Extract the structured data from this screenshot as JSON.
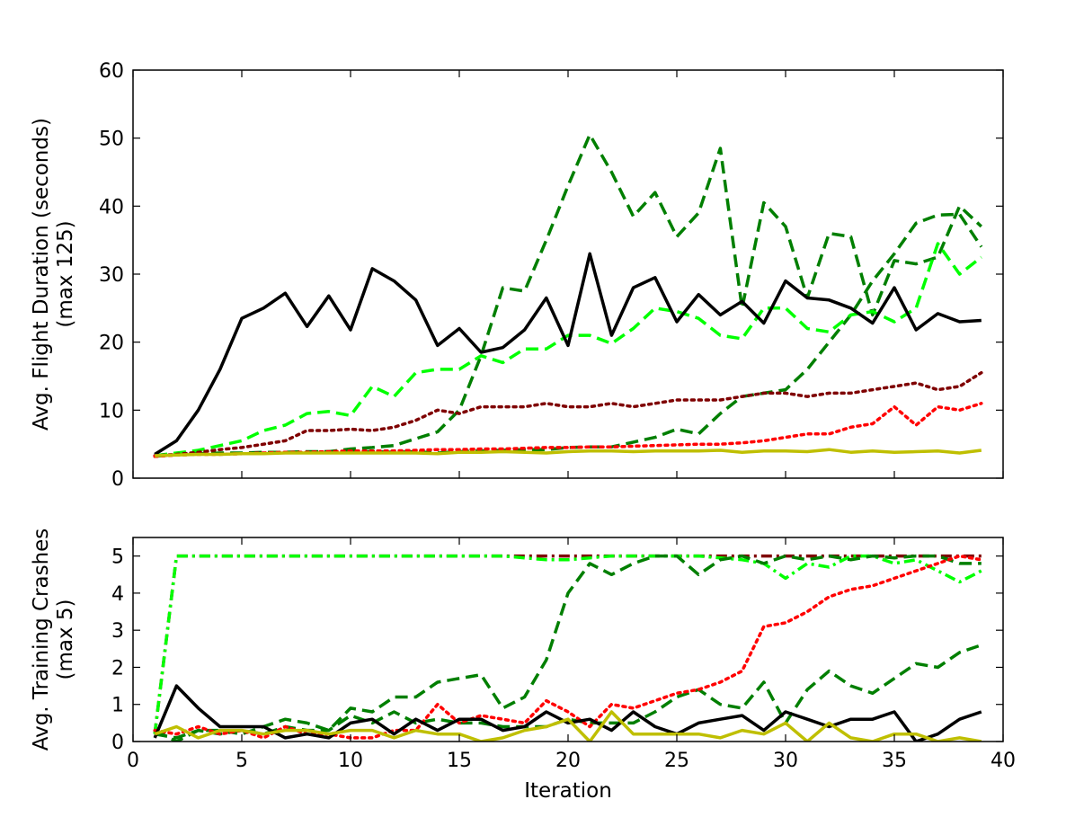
{
  "chart_data": [
    {
      "type": "line",
      "ylabel": "Avg. Flight Duration (seconds)",
      "ylabel_line2": "(max 125)",
      "xlim": [
        0,
        40
      ],
      "ylim": [
        0,
        60
      ],
      "x_ticks": [
        0,
        5,
        10,
        15,
        20,
        25,
        30,
        35,
        40
      ],
      "y_ticks": [
        0,
        10,
        20,
        30,
        40,
        50,
        60
      ],
      "x_tick_labels_shown": false,
      "grid": false,
      "series": [
        {
          "color": "#007f00",
          "style": "dashed",
          "values": [
            3.2,
            3.5,
            3.6,
            3.6,
            3.6,
            3.7,
            3.8,
            3.8,
            3.9,
            3.9,
            3.9,
            3.8,
            3.9,
            3.7,
            3.9,
            4.0,
            4.1,
            4.2,
            4.2,
            4.5,
            4.6,
            4.6,
            5.3,
            6.0,
            7.2,
            6.5,
            9.5,
            12.0,
            12.5,
            13.0,
            16.0,
            20.0,
            24.0,
            29.0,
            33.0,
            37.5,
            38.7,
            38.8,
            34.0
          ]
        },
        {
          "color": "#007f00",
          "style": "dashed",
          "values": [
            3.3,
            3.5,
            3.6,
            3.7,
            3.7,
            3.8,
            3.8,
            3.9,
            3.9,
            4.3,
            4.5,
            4.8,
            5.8,
            6.8,
            10.0,
            18.0,
            28.0,
            27.5,
            35.0,
            43.0,
            50.5,
            45.0,
            38.5,
            42.0,
            35.5,
            39.0,
            48.5,
            25.0,
            40.5,
            37.0,
            26.5,
            36.0,
            35.5,
            24.0,
            32.0,
            31.5,
            32.5,
            40.0,
            37.0
          ]
        },
        {
          "color": "#00ff00",
          "style": "dashed",
          "values": [
            3.3,
            3.7,
            4.1,
            4.8,
            5.5,
            7.0,
            7.8,
            9.5,
            9.8,
            9.2,
            13.5,
            12.0,
            15.5,
            16.0,
            16.0,
            18.0,
            17.0,
            19.0,
            19.0,
            21.0,
            21.0,
            19.8,
            22.0,
            25.0,
            24.5,
            23.5,
            21.0,
            20.5,
            25.0,
            25.0,
            22.0,
            21.5,
            24.0,
            24.5,
            23.0,
            25.0,
            34.5,
            30.0,
            32.5
          ]
        },
        {
          "color": "#000000",
          "style": "solid",
          "values": [
            3.5,
            5.5,
            10.0,
            16.0,
            23.5,
            25.0,
            27.2,
            22.3,
            26.8,
            21.8,
            30.8,
            29.0,
            26.2,
            19.5,
            22.0,
            18.5,
            19.2,
            21.8,
            26.5,
            19.5,
            33.0,
            21.0,
            28.0,
            29.5,
            23.0,
            27.0,
            24.0,
            26.0,
            22.8,
            29.0,
            26.5,
            26.2,
            25.0,
            22.8,
            28.0,
            21.8,
            24.2,
            23.0,
            23.2
          ]
        },
        {
          "color": "#7f0000",
          "style": "dotted",
          "values": [
            3.3,
            3.5,
            3.8,
            4.2,
            4.5,
            5.0,
            5.5,
            7.0,
            7.0,
            7.2,
            7.0,
            7.5,
            8.5,
            10.0,
            9.5,
            10.5,
            10.5,
            10.5,
            11.0,
            10.5,
            10.5,
            11.0,
            10.5,
            11.0,
            11.5,
            11.5,
            11.5,
            12.0,
            12.5,
            12.5,
            12.0,
            12.5,
            12.5,
            13.0,
            13.5,
            14.0,
            13.0,
            13.5,
            15.5
          ]
        },
        {
          "color": "#ff0000",
          "style": "dotted",
          "values": [
            3.2,
            3.4,
            3.5,
            3.5,
            3.6,
            3.7,
            3.8,
            3.8,
            3.9,
            4.0,
            4.0,
            4.0,
            4.1,
            4.2,
            4.2,
            4.3,
            4.3,
            4.4,
            4.5,
            4.5,
            4.6,
            4.6,
            4.7,
            4.8,
            4.9,
            5.0,
            5.0,
            5.2,
            5.5,
            6.0,
            6.5,
            6.5,
            7.5,
            8.0,
            10.5,
            7.8,
            10.5,
            10.0,
            11.0
          ]
        },
        {
          "color": "#bfbf00",
          "style": "solid",
          "values": [
            3.3,
            3.4,
            3.5,
            3.5,
            3.6,
            3.6,
            3.7,
            3.7,
            3.7,
            3.7,
            3.7,
            3.7,
            3.7,
            3.6,
            3.8,
            3.8,
            3.9,
            3.8,
            3.7,
            3.9,
            4.0,
            4.0,
            3.9,
            4.0,
            4.0,
            4.0,
            4.1,
            3.8,
            4.0,
            4.0,
            3.9,
            4.2,
            3.8,
            4.0,
            3.8,
            3.9,
            4.0,
            3.7,
            4.1
          ]
        }
      ]
    },
    {
      "type": "line",
      "xlabel": "Iteration",
      "ylabel": "Avg. Training Crashes",
      "ylabel_line2": "(max 5)",
      "xlim": [
        0,
        40
      ],
      "ylim": [
        0,
        5.5
      ],
      "x_ticks": [
        0,
        5,
        10,
        15,
        20,
        25,
        30,
        35,
        40
      ],
      "y_ticks": [
        0,
        1,
        2,
        3,
        4,
        5
      ],
      "grid": false,
      "series": [
        {
          "color": "#7f0000",
          "style": "dash-dot",
          "values": [
            0.2,
            5.0,
            5.0,
            5.0,
            5.0,
            5.0,
            5.0,
            5.0,
            5.0,
            5.0,
            5.0,
            5.0,
            5.0,
            5.0,
            5.0,
            5.0,
            5.0,
            5.0,
            5.0,
            5.0,
            5.0,
            5.0,
            5.0,
            5.0,
            5.0,
            5.0,
            5.0,
            5.0,
            5.0,
            5.0,
            5.0,
            5.0,
            5.0,
            5.0,
            5.0,
            5.0,
            5.0,
            5.0,
            5.0
          ]
        },
        {
          "color": "#00ff00",
          "style": "dash-dot",
          "values": [
            0.2,
            5.0,
            5.0,
            5.0,
            5.0,
            5.0,
            5.0,
            5.0,
            5.0,
            5.0,
            5.0,
            5.0,
            5.0,
            5.0,
            5.0,
            5.0,
            5.0,
            4.95,
            4.9,
            4.9,
            4.95,
            5.0,
            5.0,
            5.0,
            5.0,
            5.0,
            4.95,
            4.9,
            4.8,
            4.4,
            4.8,
            4.7,
            5.0,
            5.0,
            4.8,
            4.9,
            4.6,
            4.3,
            4.6
          ]
        },
        {
          "color": "#007f00",
          "style": "dashed",
          "values": [
            0.3,
            0.0,
            0.3,
            0.3,
            0.2,
            0.4,
            0.6,
            0.5,
            0.3,
            0.9,
            0.8,
            1.2,
            1.2,
            1.6,
            1.7,
            1.8,
            0.9,
            1.2,
            2.2,
            4.0,
            4.8,
            4.5,
            4.8,
            5.0,
            5.0,
            4.5,
            4.9,
            5.0,
            4.8,
            5.0,
            4.9,
            5.0,
            4.9,
            5.0,
            4.95,
            5.0,
            5.0,
            4.8,
            4.8
          ]
        },
        {
          "color": "#007f00",
          "style": "dashed",
          "values": [
            0.2,
            0.1,
            0.3,
            0.2,
            0.3,
            0.2,
            0.4,
            0.3,
            0.3,
            0.7,
            0.5,
            0.8,
            0.5,
            0.6,
            0.5,
            0.5,
            0.4,
            0.4,
            0.4,
            0.6,
            0.5,
            0.5,
            0.5,
            0.8,
            1.2,
            1.4,
            1.0,
            0.9,
            1.6,
            0.5,
            1.4,
            1.9,
            1.5,
            1.3,
            1.7,
            2.1,
            2.0,
            2.4,
            2.6
          ]
        },
        {
          "color": "#ff0000",
          "style": "dotted",
          "values": [
            0.3,
            0.2,
            0.4,
            0.2,
            0.3,
            0.1,
            0.4,
            0.2,
            0.2,
            0.1,
            0.1,
            0.3,
            0.3,
            1.0,
            0.5,
            0.7,
            0.6,
            0.5,
            1.1,
            0.8,
            0.4,
            1.0,
            0.9,
            1.1,
            1.3,
            1.4,
            1.6,
            1.9,
            3.1,
            3.2,
            3.5,
            3.9,
            4.1,
            4.2,
            4.4,
            4.6,
            4.8,
            5.0,
            4.9
          ]
        },
        {
          "color": "#000000",
          "style": "solid",
          "values": [
            0.1,
            1.5,
            0.9,
            0.4,
            0.4,
            0.4,
            0.1,
            0.2,
            0.1,
            0.5,
            0.6,
            0.2,
            0.6,
            0.3,
            0.6,
            0.6,
            0.3,
            0.4,
            0.8,
            0.5,
            0.6,
            0.3,
            0.8,
            0.4,
            0.2,
            0.5,
            0.6,
            0.7,
            0.3,
            0.8,
            0.6,
            0.4,
            0.6,
            0.6,
            0.8,
            0.0,
            0.2,
            0.6,
            0.8
          ]
        },
        {
          "color": "#bfbf00",
          "style": "solid",
          "values": [
            0.2,
            0.4,
            0.1,
            0.3,
            0.3,
            0.2,
            0.3,
            0.3,
            0.2,
            0.3,
            0.3,
            0.1,
            0.3,
            0.2,
            0.2,
            0.0,
            0.1,
            0.3,
            0.4,
            0.6,
            0.0,
            0.8,
            0.2,
            0.2,
            0.2,
            0.2,
            0.1,
            0.3,
            0.2,
            0.5,
            0.0,
            0.5,
            0.1,
            0.0,
            0.2,
            0.2,
            0.0,
            0.1,
            0.0
          ]
        }
      ]
    }
  ]
}
